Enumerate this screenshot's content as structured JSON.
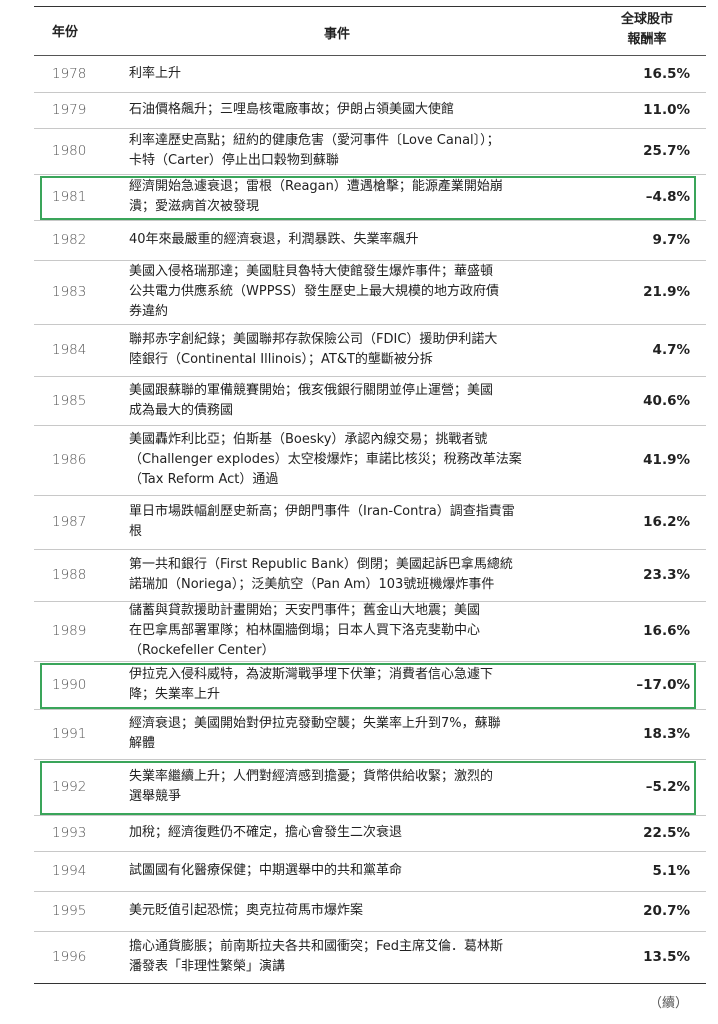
{
  "header": {
    "year": "年份",
    "event": "事件",
    "return_line1": "全球股市",
    "return_line2": "報酬率"
  },
  "rows": [
    {
      "year": "1978",
      "event": "利率上升",
      "ret": "16.5%",
      "highlight": false
    },
    {
      "year": "1979",
      "event": "石油價格飆升；三哩島核電廠事故；伊朗占領美國大使館",
      "ret": "11.0%",
      "highlight": false
    },
    {
      "year": "1980",
      "event": "利率達歷史高點；紐約的健康危害（愛河事件〔Love Canal〕）；\n卡特（Carter）停止出口穀物到蘇聯",
      "ret": "25.7%",
      "highlight": false
    },
    {
      "year": "1981",
      "event": "經濟開始急遽衰退；雷根（Reagan）遭遇槍擊；能源產業開始崩\n潰；愛滋病首次被發現",
      "ret": "–4.8%",
      "highlight": true
    },
    {
      "year": "1982",
      "event": "40年來最嚴重的經濟衰退，利潤暴跌、失業率飆升",
      "ret": "9.7%",
      "highlight": false
    },
    {
      "year": "1983",
      "event": "美國入侵格瑞那達；美國駐貝魯特大使館發生爆炸事件；華盛頓\n公共電力供應系統（WPPSS）發生歷史上最大規模的地方政府債\n券違約",
      "ret": "21.9%",
      "highlight": false
    },
    {
      "year": "1984",
      "event": "聯邦赤字創紀錄；美國聯邦存款保險公司（FDIC）援助伊利諾大\n陸銀行（Continental Illinois）；AT&T的壟斷被分拆",
      "ret": "4.7%",
      "highlight": false
    },
    {
      "year": "1985",
      "event": "美國跟蘇聯的軍備競賽開始；俄亥俄銀行關閉並停止運營；美國\n成為最大的債務國",
      "ret": "40.6%",
      "highlight": false
    },
    {
      "year": "1986",
      "event": "美國轟炸利比亞；伯斯基（Boesky）承認內線交易；挑戰者號\n（Challenger explodes）太空梭爆炸；車諾比核災；稅務改革法案\n（Tax Reform Act）通過",
      "ret": "41.9%",
      "highlight": false
    },
    {
      "year": "1987",
      "event": "單日市場跌幅創歷史新高；伊朗門事件（Iran-Contra）調查指責雷\n根",
      "ret": "16.2%",
      "highlight": false
    },
    {
      "year": "1988",
      "event": "第一共和銀行（First Republic Bank）倒閉；美國起訴巴拿馬總統\n諾瑞加（Noriega）；泛美航空（Pan Am）103號班機爆炸事件",
      "ret": "23.3%",
      "highlight": false
    },
    {
      "year": "1989",
      "event": "儲蓄與貸款援助計畫開始；天安門事件；舊金山大地震；美國\n在巴拿馬部署軍隊；柏林圍牆倒塌；日本人買下洛克斐勒中心\n（Rockefeller Center）",
      "ret": "16.6%",
      "highlight": false
    },
    {
      "year": "1990",
      "event": "伊拉克入侵科威特，為波斯灣戰爭埋下伏筆；消費者信心急遽下\n降；失業率上升",
      "ret": "–17.0%",
      "highlight": true
    },
    {
      "year": "1991",
      "event": "經濟衰退；美國開始對伊拉克發動空襲；失業率上升到7%，蘇聯\n解體",
      "ret": "18.3%",
      "highlight": false
    },
    {
      "year": "1992",
      "event": "失業率繼續上升；人們對經濟感到擔憂；貨幣供給收緊；激烈的\n選舉競爭",
      "ret": "–5.2%",
      "highlight": true
    },
    {
      "year": "1993",
      "event": "加稅；經濟復甦仍不確定，擔心會發生二次衰退",
      "ret": "22.5%",
      "highlight": false
    },
    {
      "year": "1994",
      "event": "試圖國有化醫療保健；中期選舉中的共和黨革命",
      "ret": "5.1%",
      "highlight": false
    },
    {
      "year": "1995",
      "event": "美元貶值引起恐慌；奧克拉荷馬市爆炸案",
      "ret": "20.7%",
      "highlight": false
    },
    {
      "year": "1996",
      "event": "擔心通貨膨脹；前南斯拉夫各共和國衝突；Fed主席艾倫．葛林斯\n潘發表「非理性繁榮」演講",
      "ret": "13.5%",
      "highlight": false
    }
  ],
  "footer": {
    "continued": "（續）"
  },
  "colors": {
    "highlight_border": "#3aa55a"
  }
}
